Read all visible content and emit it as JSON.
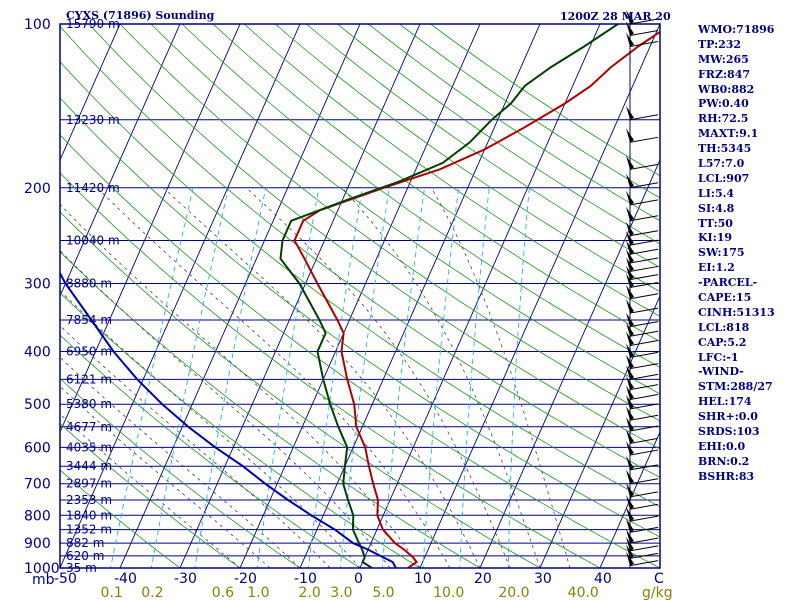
{
  "chart_data": {
    "type": "line",
    "title": "CYXS (71896) Sounding",
    "datetime": "1200Z 28 MAR 20",
    "pressure_unit": "mb",
    "mixing_ratio_unit": "g/kg",
    "xlim": [
      -50,
      50
    ],
    "ylim_mb": [
      1000,
      100
    ],
    "log_pressure": true,
    "pressure_ticks": [
      {
        "p": 100,
        "label": "100"
      },
      {
        "p": 200,
        "label": "200"
      },
      {
        "p": 300,
        "label": "300"
      },
      {
        "p": 400,
        "label": "400"
      },
      {
        "p": 500,
        "label": "500"
      },
      {
        "p": 600,
        "label": "600"
      },
      {
        "p": 700,
        "label": "700"
      },
      {
        "p": 800,
        "label": "800"
      },
      {
        "p": 900,
        "label": "900"
      },
      {
        "p": 1000,
        "label": "1000"
      }
    ],
    "height_levels": [
      {
        "p": 100,
        "label": "15790 m"
      },
      {
        "p": 150,
        "label": "13230 m"
      },
      {
        "p": 200,
        "label": "11420 m"
      },
      {
        "p": 250,
        "label": "10040 m"
      },
      {
        "p": 300,
        "label": "8880 m"
      },
      {
        "p": 350,
        "label": "7854 m"
      },
      {
        "p": 400,
        "label": "6950 m"
      },
      {
        "p": 450,
        "label": "6121 m"
      },
      {
        "p": 500,
        "label": "5380 m"
      },
      {
        "p": 550,
        "label": "4677 m"
      },
      {
        "p": 600,
        "label": "4035 m"
      },
      {
        "p": 650,
        "label": "3444 m"
      },
      {
        "p": 700,
        "label": "2897 m"
      },
      {
        "p": 750,
        "label": "2353 m"
      },
      {
        "p": 800,
        "label": "1840 m"
      },
      {
        "p": 850,
        "label": "1352 m"
      },
      {
        "p": 900,
        "label": "882 m"
      },
      {
        "p": 950,
        "label": "620 m"
      },
      {
        "p": 1000,
        "label": "35 m"
      }
    ],
    "temperature_ticks": [
      {
        "t": -50,
        "label": "-50"
      },
      {
        "t": -40,
        "label": "-40"
      },
      {
        "t": -30,
        "label": "-30"
      },
      {
        "t": -20,
        "label": "-20"
      },
      {
        "t": -10,
        "label": "-10"
      },
      {
        "t": 0,
        "label": "0"
      },
      {
        "t": 10,
        "label": "10"
      },
      {
        "t": 20,
        "label": "20"
      },
      {
        "t": 30,
        "label": "30"
      },
      {
        "t": 40,
        "label": "40"
      },
      {
        "t": 50,
        "label": "C"
      }
    ],
    "mixing_ratio_ticks": [
      {
        "w": 0.1,
        "label": "0.1"
      },
      {
        "w": 0.2,
        "label": "0.2"
      },
      {
        "w": 0.6,
        "label": "0.6"
      },
      {
        "w": 1.0,
        "label": "1.0"
      },
      {
        "w": 2.0,
        "label": "2.0"
      },
      {
        "w": 3.0,
        "label": "3.0"
      },
      {
        "w": 5.0,
        "label": "5.0"
      },
      {
        "w": 10.0,
        "label": "10.0"
      },
      {
        "w": 20.0,
        "label": "20.0"
      },
      {
        "w": 40.0,
        "label": "40.0"
      }
    ],
    "dry_adiabats_theta_c": [
      -30,
      -20,
      -10,
      0,
      10,
      20,
      30,
      40,
      50,
      60,
      70,
      80,
      90,
      100,
      110,
      120,
      130,
      140,
      150,
      160,
      170,
      180,
      190,
      200
    ],
    "moist_adiabats_c": [
      -20,
      -15,
      -10,
      -5,
      0,
      5,
      10,
      15,
      20,
      25,
      30,
      35
    ],
    "mixing_ratio_lines_gkg": [
      0.1,
      0.2,
      0.4,
      1,
      2,
      3,
      5,
      8,
      12,
      20
    ],
    "series": [
      {
        "id": "temperature",
        "color": "#b00000",
        "points": [
          [
            1000,
            8
          ],
          [
            975,
            9
          ],
          [
            955,
            8
          ],
          [
            925,
            6
          ],
          [
            900,
            4
          ],
          [
            850,
            1
          ],
          [
            800,
            -1
          ],
          [
            750,
            -2
          ],
          [
            700,
            -4
          ],
          [
            650,
            -6
          ],
          [
            600,
            -8
          ],
          [
            550,
            -11
          ],
          [
            500,
            -13
          ],
          [
            450,
            -16
          ],
          [
            400,
            -19
          ],
          [
            370,
            -20
          ],
          [
            350,
            -22
          ],
          [
            300,
            -28
          ],
          [
            270,
            -32
          ],
          [
            250,
            -35
          ],
          [
            230,
            -35
          ],
          [
            220,
            -33
          ],
          [
            200,
            -24
          ],
          [
            185,
            -16
          ],
          [
            170,
            -10
          ],
          [
            155,
            -5
          ],
          [
            140,
            0
          ],
          [
            130,
            3
          ],
          [
            120,
            5
          ],
          [
            110,
            8
          ],
          [
            100,
            12
          ]
        ]
      },
      {
        "id": "dewpoint",
        "color": "#004000",
        "points": [
          [
            1000,
            2
          ],
          [
            975,
            0
          ],
          [
            955,
            0
          ],
          [
            925,
            -1
          ],
          [
            900,
            -2
          ],
          [
            850,
            -4
          ],
          [
            800,
            -5
          ],
          [
            750,
            -7
          ],
          [
            700,
            -9
          ],
          [
            650,
            -10
          ],
          [
            600,
            -11
          ],
          [
            550,
            -14
          ],
          [
            500,
            -17
          ],
          [
            450,
            -20
          ],
          [
            400,
            -23
          ],
          [
            370,
            -23
          ],
          [
            350,
            -25
          ],
          [
            300,
            -31
          ],
          [
            270,
            -36
          ],
          [
            250,
            -37
          ],
          [
            230,
            -37
          ],
          [
            210,
            -29
          ],
          [
            195,
            -22
          ],
          [
            180,
            -16
          ],
          [
            165,
            -13
          ],
          [
            150,
            -11
          ],
          [
            140,
            -9
          ],
          [
            130,
            -8
          ],
          [
            120,
            -5
          ],
          [
            110,
            -1
          ],
          [
            100,
            3
          ]
        ]
      },
      {
        "id": "parcel",
        "color": "#0000b0",
        "points": [
          [
            1000,
            6
          ],
          [
            975,
            5
          ],
          [
            955,
            3
          ],
          [
            925,
            0
          ],
          [
            900,
            -3
          ],
          [
            850,
            -7
          ],
          [
            800,
            -12
          ],
          [
            750,
            -17
          ],
          [
            700,
            -22
          ],
          [
            650,
            -27
          ],
          [
            600,
            -33
          ],
          [
            550,
            -39
          ],
          [
            500,
            -45
          ],
          [
            450,
            -51
          ],
          [
            400,
            -57
          ],
          [
            350,
            -63
          ],
          [
            300,
            -70
          ],
          [
            250,
            -77
          ],
          [
            200,
            -84
          ],
          [
            150,
            -90
          ],
          [
            125,
            -93
          ]
        ]
      }
    ],
    "wind_barb_levels": [
      100,
      105,
      110,
      150,
      165,
      185,
      200,
      215,
      230,
      245,
      255,
      265,
      275,
      285,
      295,
      305,
      320,
      340,
      360,
      375,
      390,
      410,
      430,
      450,
      470,
      490,
      510,
      535,
      560,
      590,
      620,
      660,
      700,
      740,
      780,
      820,
      860,
      900,
      930,
      960,
      990
    ]
  },
  "indices": [
    "WMO:71896",
    "TP:232",
    "MW:265",
    "FRZ:847",
    "WB0:882",
    "PW:0.40",
    "RH:72.5",
    "MAXT:9.1",
    "TH:5345",
    "L57:7.0",
    "LCL:907",
    "LI:5.4",
    "SI:4.8",
    "TT:50",
    "KI:19",
    "SW:175",
    "EI:1.2",
    "-PARCEL-",
    "CAPE:15",
    "CINH:51313",
    "LCL:818",
    "CAP:5.2",
    "LFC:-1",
    "-WIND-",
    "STM:288/27",
    "HEL:174",
    "SHR+:0.0",
    "SRDS:103",
    "EHI:0.0",
    "BRN:0.2",
    "BSHR:83"
  ]
}
